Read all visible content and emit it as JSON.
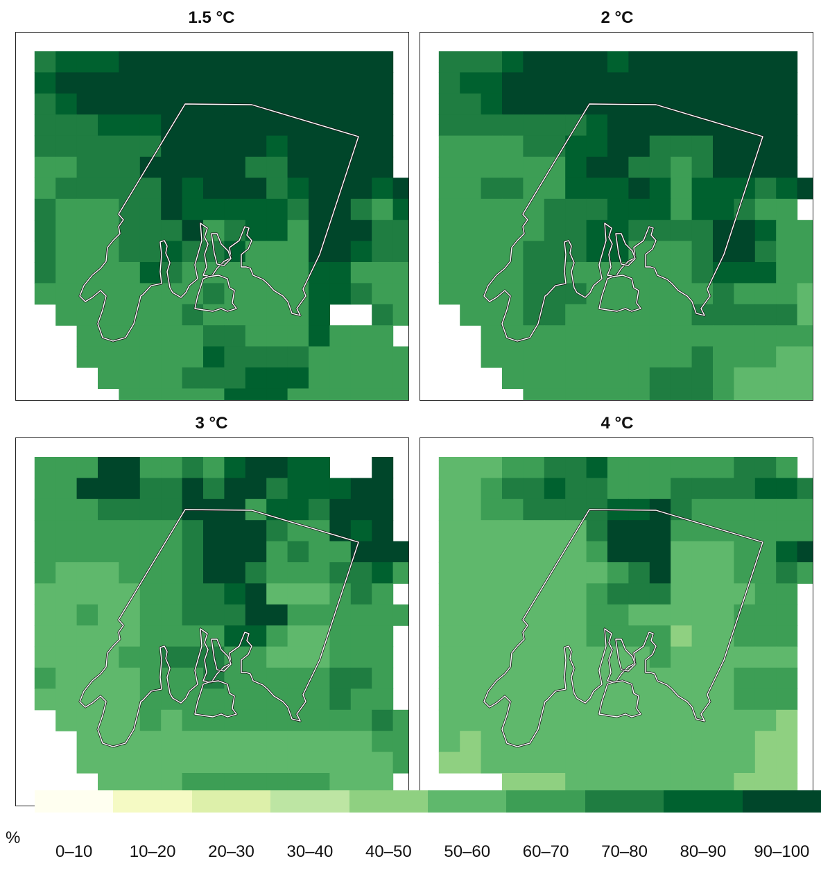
{
  "colors": {
    "c1": "#e8f5e0",
    "c5": "#8fd081",
    "c6": "#5fb86c",
    "c7": "#3d9e55",
    "c8": "#1f7d41",
    "c9": "#00612f",
    "c10": "#00462a",
    "outline": "#ffffff"
  },
  "panels": [
    {
      "title": "1.5 °C",
      "grid": [
        "..8999aaaaaaaaaaaaa..",
        "..9aaaaaaaaaaaaaaaa..",
        "..89aaaaaaaaaaaaaaa..",
        "..888999aaaaaaaaaaa..",
        "..888888aaaaa9aaaaa..",
        "..77888aaaaa88aaaaa..",
        "..788888a9aaa89aaa9a.",
        "..877788a999998aa879.",
        "..8777888a78997aaa88.",
        "..8777889889777aa988.",
        "..877779877777799777.",
        "..777777778777799877.",
        "...7777778777779..87.",
        "....777777887779777..",
        "....7777779888877777.",
        ".....7777888999777777",
        "......77777999777777."
      ]
    },
    {
      "title": "2 °C",
      "grid": [
        "..8889aaaa9aaaaaaaa..",
        "..899aaaaaaaaaaaaaa..",
        "..889aaaaaaaaaaaaaa..",
        "..88888889aaaaaaaaa..",
        "..77778899aa888aaaa..",
        "..7777779aa8878aaaa..",
        "..778877999a9799989a.",
        "..77777888999799877..",
        "..7777788998888aa977.",
        "..7777888997778aa877.",
        "..777788777777899977.",
        "..7777888777777877766",
        "...777887777778888867",
        "....7777777777777777.",
        "....77777777778777667",
        ".....7777777888766666",
        "......777777888766666"
      ]
    },
    {
      "title": "3 °C",
      "grid": [
        "..777aa77879aa99..a..",
        "..77aaa88a8aa8999aa..",
        "..7778888aaa7998aaa..",
        "..77777778aaa877a9a..",
        "..77777778aaa7877aaa.",
        "..76667778aa87778897.",
        "..6666677889a666787..",
        "..6676677888aa777777.",
        "..66666777799766777..",
        "..66667788877666777..",
        "..76666777877777887..",
        "..66666777777777877..",
        "...66667677777777787.",
        "....6666666666666677.",
        "....6666666666666667.",
        ".....66667777777666..",
        "......666666777655555"
      ]
    },
    {
      "title": "4 °C",
      "grid": [
        "..66677889777777887..",
        "..667889887778888998.",
        "..6677888899a87777777",
        "..66666668aaa7777777.",
        "..66666667aaa666779a.",
        "..6666666678a66677877",
        "..66666667888666677..",
        "..66666667766666777..",
        "..66666667777566777..",
        "..66666666667666666..",
        "..66666666666666777..",
        "..66666666666666777..",
        "..66666666666666665..",
        "..65666666666666655..",
        "..55666666666666655..",
        ".....55566666666555..",
        "......56666666665555."
      ]
    }
  ],
  "legend": {
    "unit": "%",
    "items": [
      {
        "label": "0–10",
        "color": "#fffff0"
      },
      {
        "label": "10–20",
        "color": "#f5fac4"
      },
      {
        "label": "20–30",
        "color": "#ddf0aa"
      },
      {
        "label": "30–40",
        "color": "#bde5a3"
      },
      {
        "label": "40–50",
        "color": "#8fd081"
      },
      {
        "label": "50–60",
        "color": "#5fb86c"
      },
      {
        "label": "60–70",
        "color": "#3d9e55"
      },
      {
        "label": "70–80",
        "color": "#1f7d41"
      },
      {
        "label": "80–90",
        "color": "#00612f"
      },
      {
        "label": "90–100",
        "color": "#00462a"
      }
    ]
  }
}
